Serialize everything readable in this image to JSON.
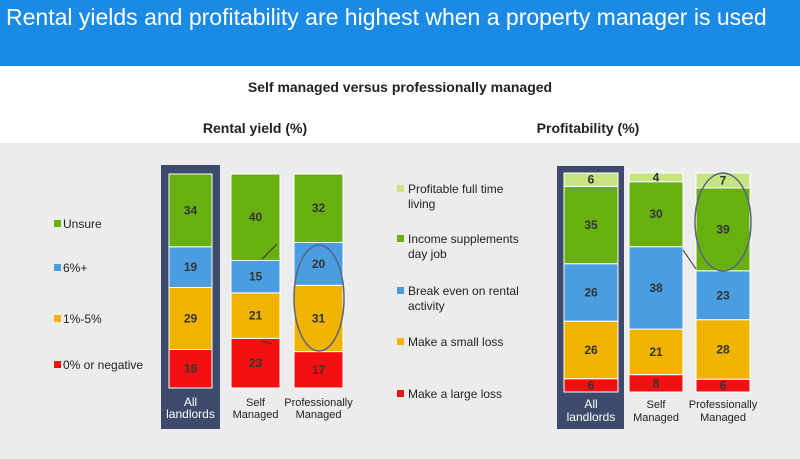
{
  "header": {
    "title": "Rental yields and profitability are highest when a property manager is used"
  },
  "subtitle": "Self managed versus professionally managed",
  "chart_data": [
    {
      "type": "bar",
      "stacked": true,
      "title": "Rental yield (%)",
      "categories": [
        "All landlords",
        "Self Managed",
        "Professionally Managed"
      ],
      "category_lines": [
        [
          "All",
          "landlords"
        ],
        [
          "Self",
          "Managed"
        ],
        [
          "Professionally",
          "Managed"
        ]
      ],
      "series": [
        {
          "name": "0% or negative",
          "color": "#f41010",
          "values": [
            18,
            23,
            17
          ]
        },
        {
          "name": "1%-5%",
          "color": "#f0b400",
          "values": [
            29,
            21,
            31
          ]
        },
        {
          "name": "6%+",
          "color": "#4a9ee0",
          "values": [
            19,
            15,
            20
          ]
        },
        {
          "name": "Unsure",
          "color": "#68b010",
          "values": [
            34,
            40,
            32
          ]
        }
      ],
      "legend_order": [
        "Unsure",
        "6%+",
        "1%-5%",
        "0% or negative"
      ],
      "legend": "left",
      "highlight_category": "All landlords",
      "ylim": [
        0,
        100
      ],
      "grid": false
    },
    {
      "type": "bar",
      "stacked": true,
      "title": "Profitability (%)",
      "categories": [
        "All landlords",
        "Self Managed",
        "Professionally Managed"
      ],
      "category_lines": [
        [
          "All",
          "landlords"
        ],
        [
          "Self",
          "Managed"
        ],
        [
          "Professionally",
          "Managed"
        ]
      ],
      "series": [
        {
          "name": "Make a large loss",
          "color": "#f41010",
          "values": [
            6,
            8,
            6
          ]
        },
        {
          "name": "Make a small loss",
          "color": "#f0b400",
          "values": [
            26,
            21,
            28
          ]
        },
        {
          "name": "Break even on rental activity",
          "color": "#4a9ee0",
          "values": [
            26,
            38,
            23
          ]
        },
        {
          "name": "Income supplements day job",
          "color": "#68b010",
          "values": [
            35,
            30,
            39
          ]
        },
        {
          "name": "Profitable full time living",
          "color": "#c6e482",
          "values": [
            6,
            4,
            7
          ]
        }
      ],
      "legend_order": [
        "Profitable full time living",
        "Income supplements day job",
        "Break even on rental activity",
        "Make a small loss",
        "Make a large loss"
      ],
      "legend_lines": {
        "Profitable full time living": [
          "Profitable full time",
          "living"
        ],
        "Income supplements day job": [
          "Income supplements",
          "day job"
        ],
        "Break even on rental activity": [
          "Break even on rental",
          "activity"
        ],
        "Make a small loss": [
          "Make a small loss"
        ],
        "Make a large loss": [
          "Make a large loss"
        ]
      },
      "legend": "left",
      "highlight_category": "All landlords",
      "ylim": [
        0,
        100
      ],
      "grid": false
    }
  ]
}
